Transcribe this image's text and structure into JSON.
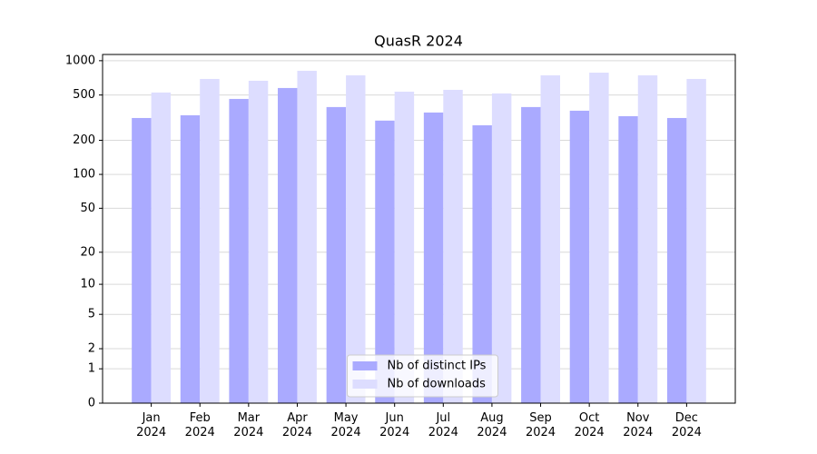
{
  "chart_data": {
    "type": "bar",
    "title": "QuasR 2024",
    "categories": [
      "Jan 2024",
      "Feb 2024",
      "Mar 2024",
      "Apr 2024",
      "May 2024",
      "Jun 2024",
      "Jul 2024",
      "Aug 2024",
      "Sep 2024",
      "Oct 2024",
      "Nov 2024",
      "Dec 2024"
    ],
    "series": [
      {
        "name": "Nb of distinct IPs",
        "color": "#aaaaff",
        "values": [
          314,
          332,
          462,
          576,
          392,
          298,
          351,
          271,
          392,
          364,
          326,
          314
        ]
      },
      {
        "name": "Nb of downloads",
        "color": "#ddddff",
        "values": [
          526,
          692,
          667,
          816,
          744,
          535,
          555,
          516,
          744,
          786,
          744,
          692
        ]
      }
    ],
    "yscale": "log1p",
    "ylim": [
      0,
      1134
    ],
    "yticks": [
      0,
      1,
      2,
      5,
      10,
      20,
      50,
      100,
      200,
      500,
      1000
    ],
    "grid": true,
    "legend": "lower center"
  }
}
